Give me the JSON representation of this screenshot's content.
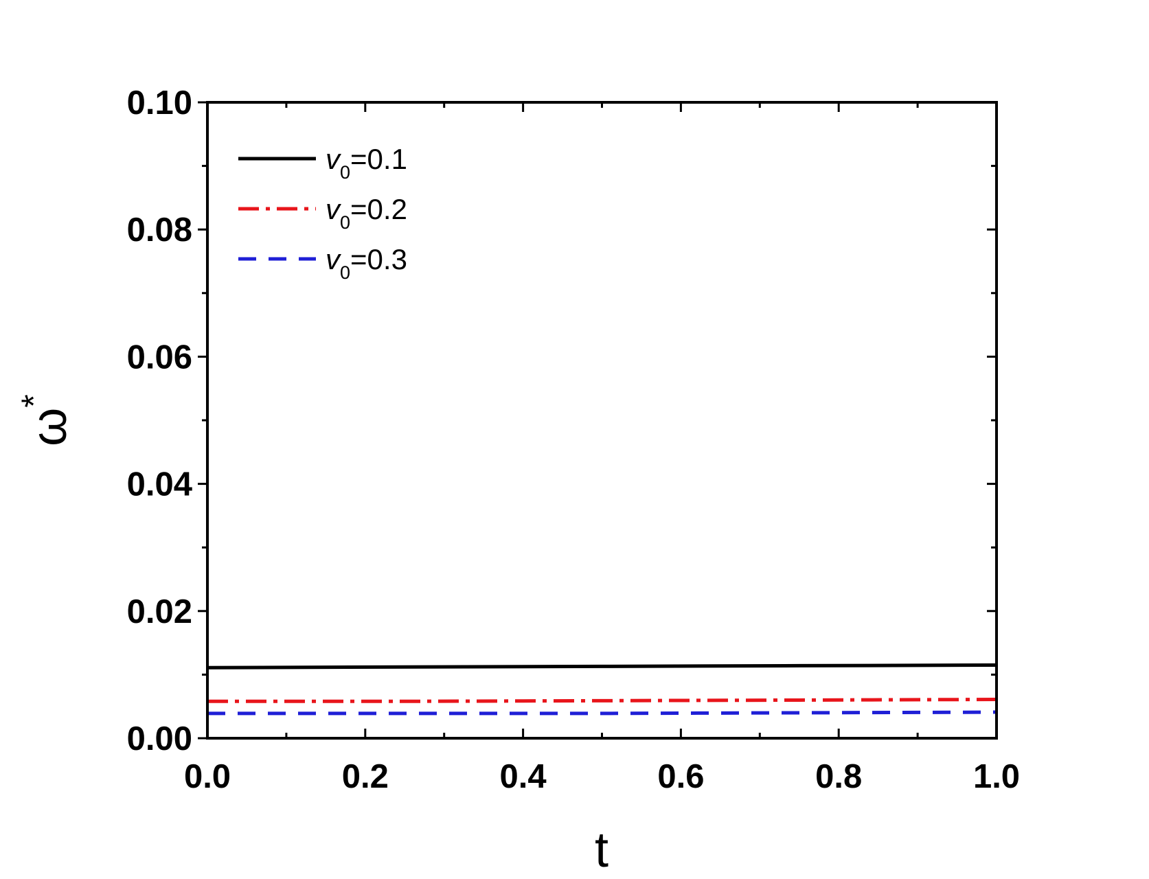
{
  "chart_data": {
    "type": "line",
    "xlabel": "t",
    "ylabel": "ω",
    "ylabel_superscript": "*",
    "xlim": [
      0.0,
      1.0
    ],
    "ylim": [
      0.0,
      0.1
    ],
    "x_major_ticks": [
      "0.0",
      "0.2",
      "0.4",
      "0.6",
      "0.8",
      "1.0"
    ],
    "y_major_ticks": [
      "0.00",
      "0.02",
      "0.04",
      "0.06",
      "0.08",
      "0.10"
    ],
    "grid": false,
    "legend_position": "top-left",
    "series": [
      {
        "name_prefix": "v",
        "name_subscript": "0",
        "name_suffix": "=0.1",
        "color": "#000000",
        "dash": "solid",
        "x": [
          0.0,
          0.25,
          0.5,
          0.75,
          1.0
        ],
        "y": [
          0.0111,
          0.0112,
          0.0113,
          0.0114,
          0.0115
        ]
      },
      {
        "name_prefix": "v",
        "name_subscript": "0",
        "name_suffix": "=0.2",
        "color": "#e8151b",
        "dash": "dashdot",
        "x": [
          0.0,
          0.25,
          0.5,
          0.75,
          1.0
        ],
        "y": [
          0.0058,
          0.0058,
          0.0059,
          0.006,
          0.0061
        ]
      },
      {
        "name_prefix": "v",
        "name_subscript": "0",
        "name_suffix": "=0.3",
        "color": "#1f1fd6",
        "dash": "dashed",
        "x": [
          0.0,
          0.25,
          0.5,
          0.75,
          1.0
        ],
        "y": [
          0.0039,
          0.0039,
          0.0039,
          0.004,
          0.0041
        ]
      }
    ]
  }
}
